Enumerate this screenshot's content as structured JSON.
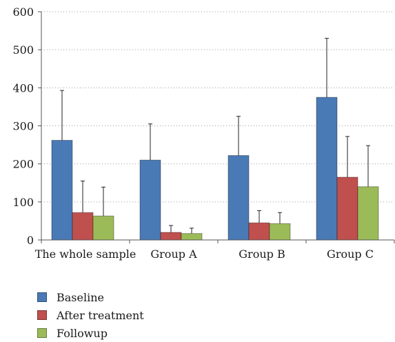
{
  "chart_data": {
    "type": "bar",
    "title": "",
    "xlabel": "",
    "ylabel": "",
    "categories": [
      "The whole sample",
      "Group A",
      "Group B",
      "Group C"
    ],
    "series": [
      {
        "name": "Baseline",
        "color": "#4a7ab5",
        "values": [
          262,
          210,
          222,
          375
        ],
        "error": [
          131,
          95,
          103,
          155
        ]
      },
      {
        "name": "After treatment",
        "color": "#c0504d",
        "values": [
          72,
          20,
          45,
          165
        ],
        "error": [
          83,
          18,
          32,
          107
        ]
      },
      {
        "name": "Followup",
        "color": "#9bbb59",
        "values": [
          63,
          17,
          43,
          140
        ],
        "error": [
          76,
          14,
          29,
          108
        ]
      }
    ],
    "ylim": [
      0,
      600
    ],
    "yticks": [
      0,
      100,
      200,
      300,
      400,
      500,
      600
    ],
    "ytick_labels": [
      "0",
      "100",
      "200",
      "300",
      "400",
      "500",
      "600"
    ],
    "grid": "horizontal dotted",
    "legend_position": "bottom-left",
    "error_bars": "upper only"
  }
}
